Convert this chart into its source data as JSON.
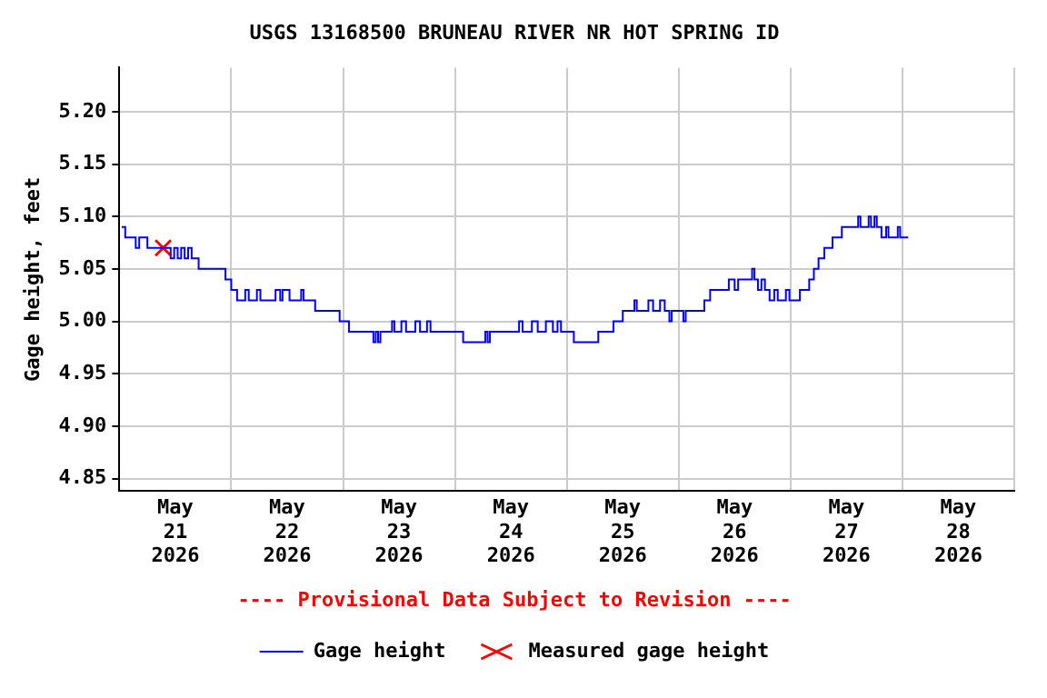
{
  "chart_data": {
    "type": "step",
    "title": "USGS 13168500 BRUNEAU RIVER NR HOT SPRING ID",
    "ylabel": "Gage height, feet",
    "annotations": [
      "---- Provisional Data Subject to Revision ----"
    ],
    "xlim": [
      "2026-05-21T00:00",
      "2026-05-29T00:00"
    ],
    "xticks": [
      {
        "value": "2026-05-21T00:00",
        "label": null
      },
      {
        "value": "2026-05-21T12:00",
        "label": "May 21 2026"
      },
      {
        "value": "2026-05-22T00:00",
        "label": null
      },
      {
        "value": "2026-05-22T12:00",
        "label": "May 22 2026"
      },
      {
        "value": "2026-05-23T00:00",
        "label": null
      },
      {
        "value": "2026-05-23T12:00",
        "label": "May 23 2026"
      },
      {
        "value": "2026-05-24T00:00",
        "label": null
      },
      {
        "value": "2026-05-24T12:00",
        "label": "May 24 2026"
      },
      {
        "value": "2026-05-25T00:00",
        "label": null
      },
      {
        "value": "2026-05-25T12:00",
        "label": "May 25 2026"
      },
      {
        "value": "2026-05-26T00:00",
        "label": null
      },
      {
        "value": "2026-05-26T12:00",
        "label": "May 26 2026"
      },
      {
        "value": "2026-05-27T00:00",
        "label": null
      },
      {
        "value": "2026-05-27T12:00",
        "label": "May 27 2026"
      },
      {
        "value": "2026-05-28T00:00",
        "label": null
      },
      {
        "value": "2026-05-28T12:00",
        "label": "May 28 2026"
      },
      {
        "value": "2026-05-29T00:00",
        "label": null
      }
    ],
    "ylim": [
      4.838,
      5.242
    ],
    "yticks": [
      {
        "value": 4.85,
        "label": "4.85"
      },
      {
        "value": 4.9,
        "label": "4.90"
      },
      {
        "value": 4.95,
        "label": "4.95"
      },
      {
        "value": 5.0,
        "label": "5.00"
      },
      {
        "value": 5.05,
        "label": "5.05"
      },
      {
        "value": 5.1,
        "label": "5.10"
      },
      {
        "value": 5.15,
        "label": "5.15"
      },
      {
        "value": 5.2,
        "label": "5.20"
      }
    ],
    "grid": true,
    "legend": "bottom",
    "series": [
      {
        "name": "Gage height",
        "type": "step",
        "color": "#0000ff",
        "marker": "none",
        "x": [
          "2026-05-21T00:30",
          "2026-05-21T01:15",
          "2026-05-21T03:30",
          "2026-05-21T04:15",
          "2026-05-21T06:00",
          "2026-05-21T11:00",
          "2026-05-21T11:45",
          "2026-05-21T12:30",
          "2026-05-21T13:15",
          "2026-05-21T14:00",
          "2026-05-21T14:45",
          "2026-05-21T15:30",
          "2026-05-21T17:00",
          "2026-05-21T22:45",
          "2026-05-22T00:00",
          "2026-05-22T01:15",
          "2026-05-22T03:00",
          "2026-05-22T03:45",
          "2026-05-22T05:30",
          "2026-05-22T06:15",
          "2026-05-22T09:30",
          "2026-05-22T10:30",
          "2026-05-22T11:00",
          "2026-05-22T12:30",
          "2026-05-22T15:00",
          "2026-05-22T15:30",
          "2026-05-22T18:00",
          "2026-05-22T23:15",
          "2026-05-23T01:15",
          "2026-05-23T06:30",
          "2026-05-23T07:00",
          "2026-05-23T07:30",
          "2026-05-23T08:00",
          "2026-05-23T10:30",
          "2026-05-23T11:00",
          "2026-05-23T12:30",
          "2026-05-23T13:30",
          "2026-05-23T15:30",
          "2026-05-23T16:30",
          "2026-05-23T18:00",
          "2026-05-23T18:45",
          "2026-05-24T01:45",
          "2026-05-24T06:30",
          "2026-05-24T07:00",
          "2026-05-24T07:30",
          "2026-05-24T13:45",
          "2026-05-24T14:30",
          "2026-05-24T16:30",
          "2026-05-24T17:45",
          "2026-05-24T19:30",
          "2026-05-24T21:00",
          "2026-05-24T22:00",
          "2026-05-24T22:45",
          "2026-05-25T01:30",
          "2026-05-25T06:45",
          "2026-05-25T10:00",
          "2026-05-25T12:00",
          "2026-05-25T14:30",
          "2026-05-25T15:00",
          "2026-05-25T17:30",
          "2026-05-25T18:30",
          "2026-05-25T20:00",
          "2026-05-25T21:00",
          "2026-05-25T22:00",
          "2026-05-25T22:30",
          "2026-05-26T01:00",
          "2026-05-26T01:30",
          "2026-05-26T05:30",
          "2026-05-26T06:45",
          "2026-05-26T10:45",
          "2026-05-26T12:00",
          "2026-05-26T12:45",
          "2026-05-26T15:45",
          "2026-05-26T16:15",
          "2026-05-26T17:00",
          "2026-05-26T17:45",
          "2026-05-26T18:30",
          "2026-05-26T19:30",
          "2026-05-26T20:30",
          "2026-05-26T21:15",
          "2026-05-26T23:00",
          "2026-05-26T23:45",
          "2026-05-27T02:00",
          "2026-05-27T04:00",
          "2026-05-27T05:00",
          "2026-05-27T06:00",
          "2026-05-27T07:15",
          "2026-05-27T09:00",
          "2026-05-27T11:00",
          "2026-05-27T14:30",
          "2026-05-27T15:00",
          "2026-05-27T16:45",
          "2026-05-27T17:15",
          "2026-05-27T18:00",
          "2026-05-27T18:30",
          "2026-05-27T19:30",
          "2026-05-27T20:30",
          "2026-05-27T21:00",
          "2026-05-27T23:00",
          "2026-05-27T23:30",
          "2026-05-28T01:15"
        ],
        "values": [
          5.09,
          5.08,
          5.07,
          5.08,
          5.07,
          5.06,
          5.07,
          5.06,
          5.07,
          5.06,
          5.07,
          5.06,
          5.05,
          5.04,
          5.03,
          5.02,
          5.03,
          5.02,
          5.03,
          5.02,
          5.03,
          5.02,
          5.03,
          5.02,
          5.03,
          5.02,
          5.01,
          5.0,
          4.99,
          4.98,
          4.99,
          4.98,
          4.99,
          5.0,
          4.99,
          5.0,
          4.99,
          5.0,
          4.99,
          5.0,
          4.99,
          4.98,
          4.99,
          4.98,
          4.99,
          5.0,
          4.99,
          5.0,
          4.99,
          5.0,
          4.99,
          5.0,
          4.99,
          4.98,
          4.99,
          5.0,
          5.01,
          5.02,
          5.01,
          5.02,
          5.01,
          5.02,
          5.01,
          5.0,
          5.01,
          5.0,
          5.01,
          5.02,
          5.03,
          5.04,
          5.03,
          5.04,
          5.05,
          5.04,
          5.03,
          5.04,
          5.03,
          5.02,
          5.03,
          5.02,
          5.03,
          5.02,
          5.03,
          5.04,
          5.05,
          5.06,
          5.07,
          5.08,
          5.09,
          5.1,
          5.09,
          5.1,
          5.09,
          5.1,
          5.09,
          5.08,
          5.09,
          5.08,
          5.09,
          5.08,
          5.08
        ]
      },
      {
        "name": "Measured gage height",
        "type": "scatter",
        "color": "#ff0000",
        "marker": "cross",
        "x": [
          "2026-05-21T09:24"
        ],
        "values": [
          5.07
        ]
      }
    ]
  }
}
